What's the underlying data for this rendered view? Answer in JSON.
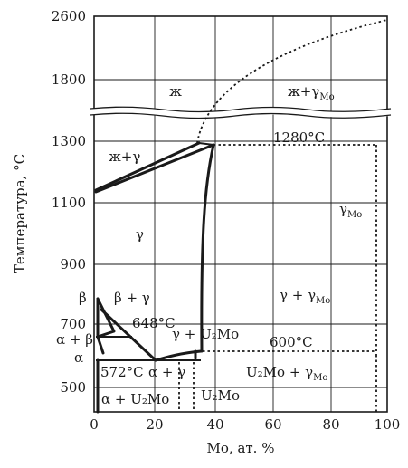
{
  "diagram": {
    "y_axis_title": "Температура, °C",
    "x_axis_title": "Mo, ат. %",
    "y_ticks": [
      "2600",
      "1800",
      "1300",
      "1100",
      "900",
      "700",
      "500"
    ],
    "x_ticks": [
      "0",
      "20",
      "40",
      "60",
      "80",
      "100"
    ],
    "labels": {
      "liquid": "ж",
      "liquid_gamma_mo_main": "ж+γ",
      "liquid_gamma_mo_sub": "Mo",
      "liquid_gamma": "ж+γ",
      "temp_1280": "1280°C",
      "gamma_mo_main": "γ",
      "gamma_mo_sub": "Mo",
      "gamma": "γ",
      "gamma_gamma_mo_main": "γ + γ",
      "gamma_gamma_mo_sub": "Mo",
      "beta": "β",
      "beta_gamma": "β + γ",
      "temp_648": "648°C",
      "alpha_beta": "α + β",
      "gamma_u2mo": "γ + U₂Mo",
      "temp_600": "600°C",
      "alpha": "α",
      "temp_572": "572°C",
      "alpha_gamma": "α + γ",
      "u2mo_gamma_mo_main": "U₂Mo + γ",
      "u2mo_gamma_mo_sub": "Mo",
      "alpha_u2mo": "α + U₂Mo",
      "u2mo": "U₂Mo"
    }
  }
}
